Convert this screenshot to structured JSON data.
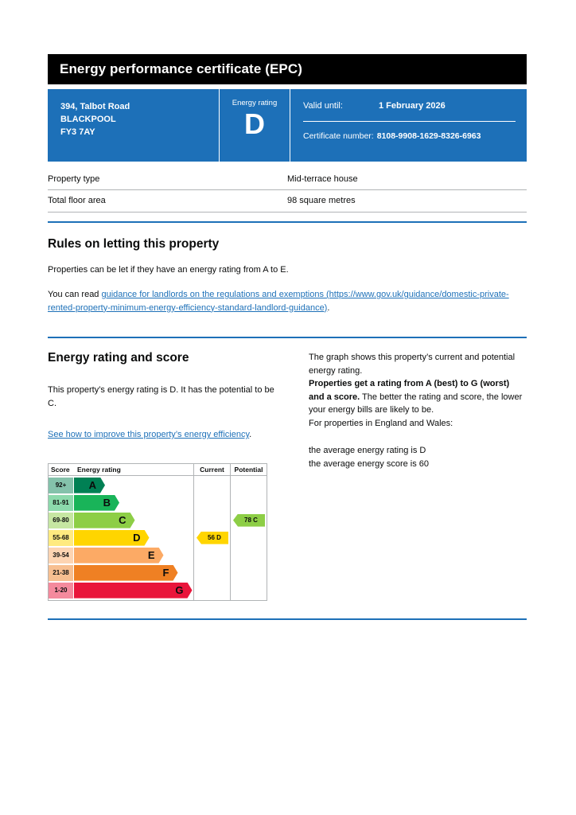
{
  "header": {
    "title": "Energy performance certificate (EPC)"
  },
  "summary_box": {
    "address_lines": [
      "394, Talbot Road",
      "BLACKPOOL",
      "FY3 7AY"
    ],
    "energy_rating_label": "Energy rating",
    "energy_rating_letter": "D",
    "valid_until_label": "Valid until:",
    "valid_until_value": "1 February 2026",
    "certificate_number_label": "Certificate number:",
    "certificate_number_value": "8108-9908-1629-8326-6963"
  },
  "property_details": [
    {
      "label": "Property type",
      "value": "Mid-terrace house"
    },
    {
      "label": "Total floor area",
      "value": "98 square metres"
    }
  ],
  "rules": {
    "heading": "Rules on letting this property",
    "intro": "Properties can be let if they have an energy rating from A to E.",
    "read_prefix": "You can read ",
    "link_text": "guidance for landlords on the regulations and exemptions (https://www.gov.uk/guidance/domestic-private-rented-property-minimum-energy-efficiency-standard-landlord-guidance)",
    "read_suffix": "."
  },
  "rating": {
    "heading": "Energy rating and score",
    "intro": "This property’s energy rating is D. It has the potential to be C.",
    "improve_link": "See how to improve this property’s energy efficiency",
    "improve_suffix": ".",
    "graph_para": "The graph shows this property’s current and potential energy rating.",
    "ratings_bold": "Properties get a rating from A (best) to G (worst) and a score.",
    "ratings_rest": " The better the rating and score, the lower your energy bills are likely to be.",
    "regions_para": "For properties in England and Wales:",
    "average_rating_line": "the average energy rating is D",
    "average_score_line": "the average energy score is 60"
  },
  "chart_data": {
    "type": "epc-bands",
    "columns": [
      "Score",
      "Energy rating",
      "Current",
      "Potential"
    ],
    "bands": [
      {
        "score": "92+",
        "letter": "A",
        "color": "#008054",
        "tint": "#84c2ab",
        "width_pct": 26
      },
      {
        "score": "81-91",
        "letter": "B",
        "color": "#19b459",
        "tint": "#8cd9ac",
        "width_pct": 38
      },
      {
        "score": "69-80",
        "letter": "C",
        "color": "#8dce46",
        "tint": "#c6e6a2",
        "width_pct": 51
      },
      {
        "score": "55-68",
        "letter": "D",
        "color": "#ffd500",
        "tint": "#ffea80",
        "width_pct": 63
      },
      {
        "score": "39-54",
        "letter": "E",
        "color": "#fcaa65",
        "tint": "#fdd4b2",
        "width_pct": 75
      },
      {
        "score": "21-38",
        "letter": "F",
        "color": "#ef8023",
        "tint": "#f7bf91",
        "width_pct": 87
      },
      {
        "score": "1-20",
        "letter": "G",
        "color": "#e9153b",
        "tint": "#f48a9d",
        "width_pct": 99
      }
    ],
    "current": {
      "label": "56 D",
      "value": 56,
      "letter": "D",
      "band_index": 3,
      "color": "#ffd500"
    },
    "potential": {
      "label": "78 C",
      "value": 78,
      "letter": "C",
      "band_index": 2,
      "color": "#8dce46"
    }
  },
  "colors": {
    "brand_blue": "#1d70b8",
    "header_black": "#000000",
    "border_gray": "#b1b4b6",
    "text": "#0b0c0c"
  }
}
